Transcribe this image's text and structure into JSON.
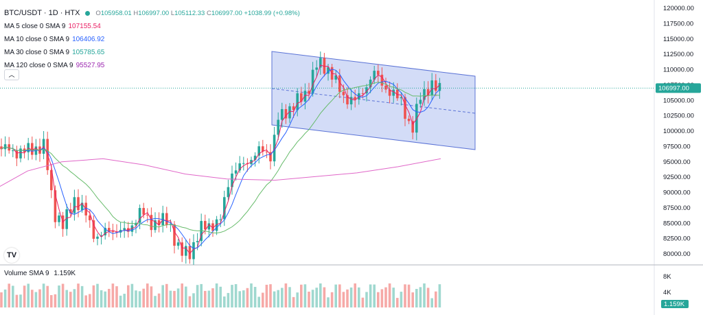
{
  "header": {
    "symbol": "BTC/USDT · 1D · HTX",
    "open_label": "O",
    "open": "105958.01",
    "high_label": "H",
    "high": "106997.00",
    "low_label": "L",
    "low": "105112.33",
    "close_label": "C",
    "close": "106997.00",
    "change": "+1038.99 (+0.98%)"
  },
  "indicators": [
    {
      "label": "MA 5 close 0 SMA 9",
      "value": "107155.54",
      "color": "#e91e63"
    },
    {
      "label": "MA 10 close 0 SMA 9",
      "value": "106406.92",
      "color": "#2962ff"
    },
    {
      "label": "MA 30 close 0 SMA 9",
      "value": "105785.65",
      "color": "#26a69a"
    },
    {
      "label": "MA 120 close 0 SMA 9",
      "value": "95527.95",
      "color": "#9c27b0"
    }
  ],
  "collapse_icon": "chevron-up-icon",
  "volume": {
    "label": "Volume SMA 9",
    "value": "1.159K",
    "ticks": [
      "8K",
      "4K"
    ]
  },
  "price_axis": {
    "ticks": [
      "120000.00",
      "117500.00",
      "115000.00",
      "112500.00",
      "110000.00",
      "107500.00",
      "105000.00",
      "102500.00",
      "100000.00",
      "97500.00",
      "95000.00",
      "92500.00",
      "90000.00",
      "87500.00",
      "85000.00",
      "82500.00",
      "80000.00"
    ],
    "last_price": "106997.00"
  },
  "logo": "TV",
  "colors": {
    "up": "#26a69a",
    "down": "#ef5350",
    "channel_fill": "#c8d3f5",
    "channel_line": "#5b73d6"
  }
}
